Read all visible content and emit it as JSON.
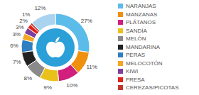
{
  "chart_data": {
    "type": "pie",
    "categories": [
      "NARANJAS",
      "MANZANAS",
      "PLÁTANOS",
      "SANDÍA",
      "MELÓN",
      "MANDARINA",
      "PERAS",
      "MELOCOTÓN",
      "KIWI",
      "FRESA",
      "CEREZAS/PICOTAS",
      null
    ],
    "values": [
      27,
      11,
      10,
      9,
      8,
      7,
      6,
      3,
      3,
      2,
      1,
      12
    ],
    "value_labels": [
      "27%",
      "11%",
      "10%",
      "9%",
      "8%",
      "7%",
      "6%",
      "3%",
      "3%",
      "2%",
      "1%",
      "12%"
    ],
    "colors": [
      "#5bbce9",
      "#f0900f",
      "#d01f7c",
      "#e8c21a",
      "#8a8a8a",
      "#222222",
      "#2f7fc1",
      "#f5a623",
      "#7b3f9e",
      "#e2231a",
      "#c0392b",
      "#a9d3ee"
    ],
    "data_labels": true,
    "legend": "right"
  }
}
